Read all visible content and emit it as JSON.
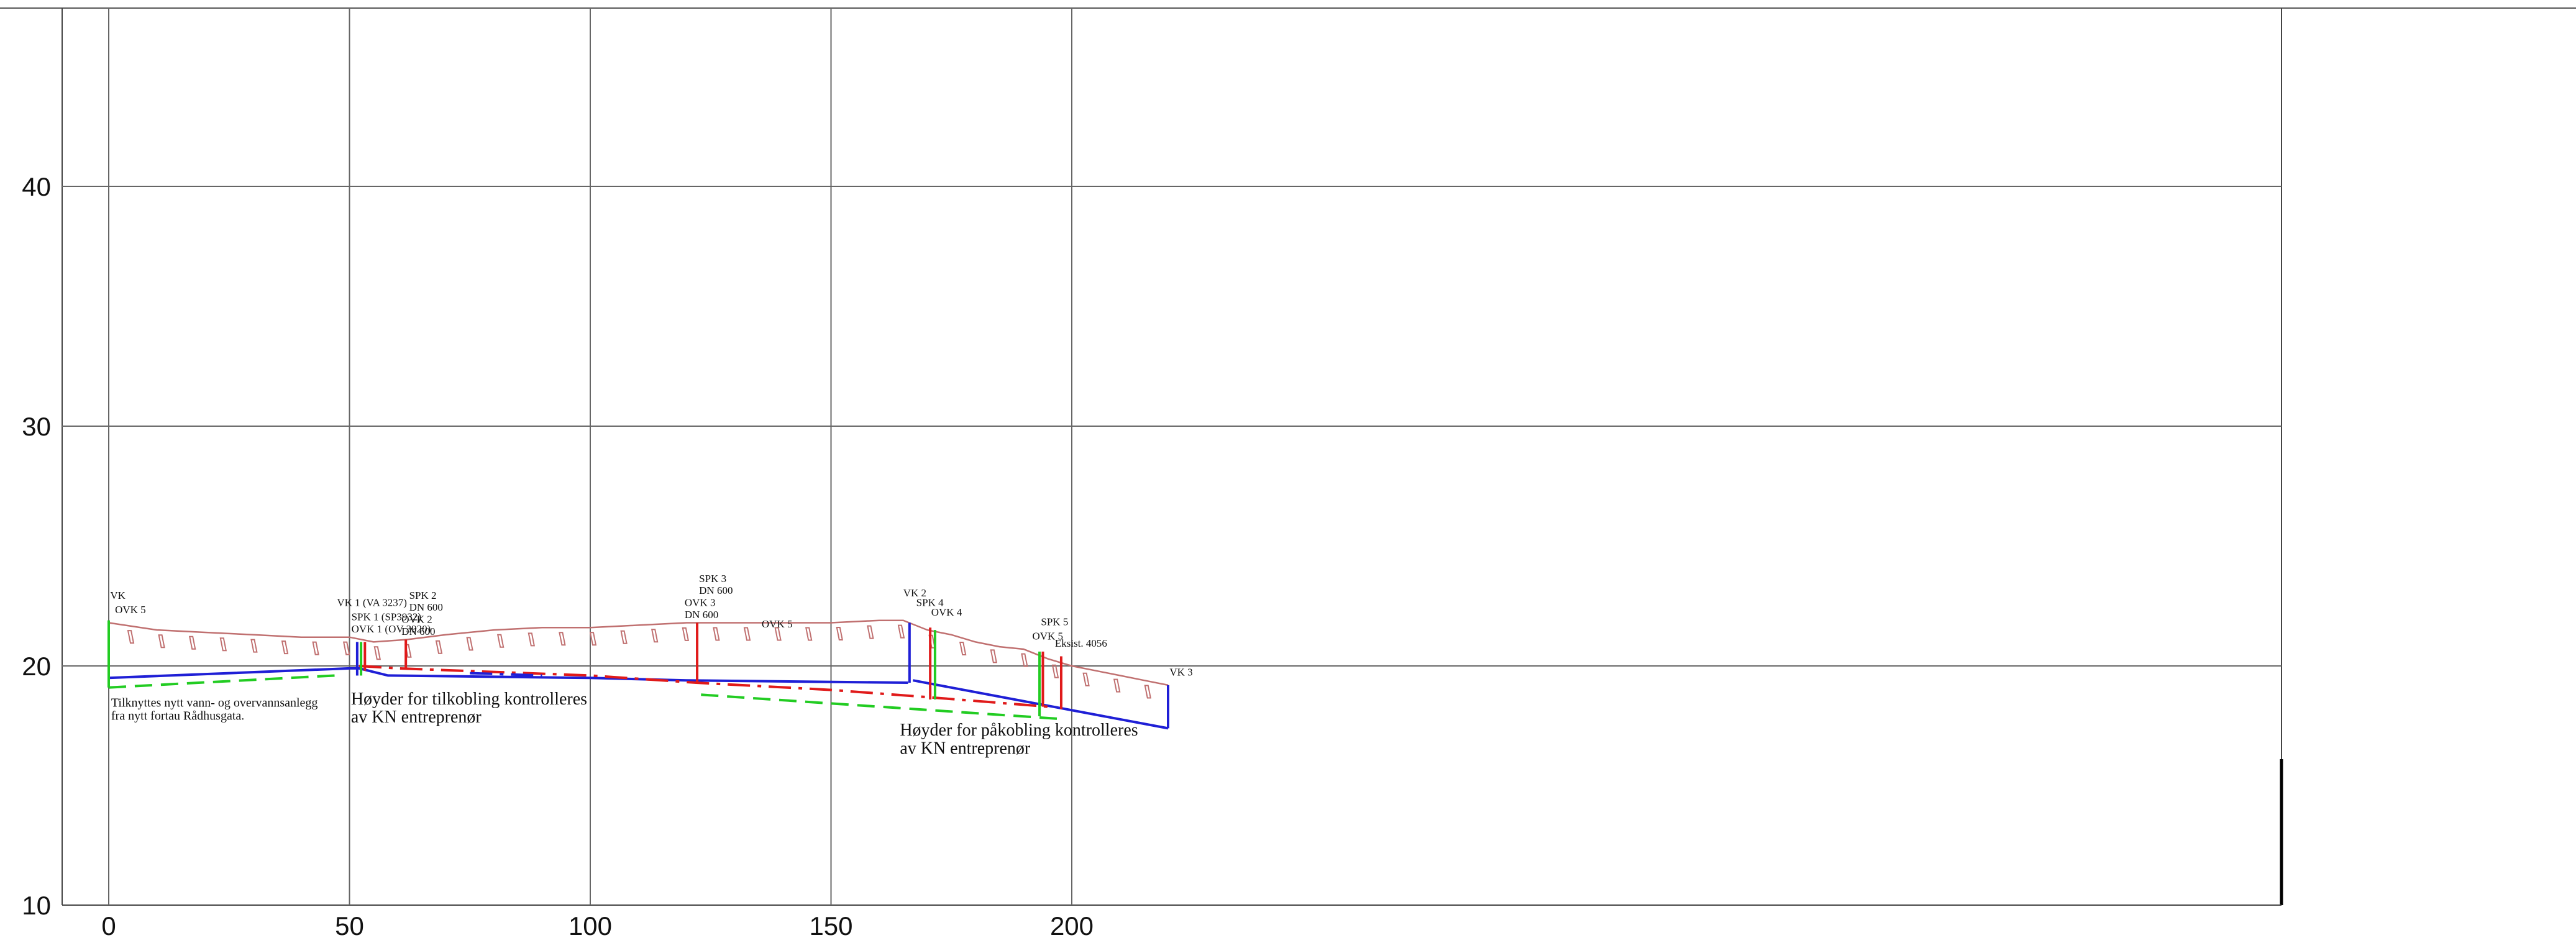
{
  "chart_data": {
    "type": "profile",
    "x_axis": {
      "ticks": [
        "0",
        "50",
        "100",
        "150",
        "200"
      ],
      "range": [
        0,
        225
      ]
    },
    "y_axis": {
      "ticks": [
        "10",
        "20",
        "30",
        "40"
      ],
      "range": [
        10,
        47
      ]
    },
    "grid": true,
    "terrain": {
      "name": "terrain",
      "color": "#c07070",
      "points": [
        [
          0,
          21.8
        ],
        [
          10,
          21.5
        ],
        [
          20,
          21.4
        ],
        [
          30,
          21.3
        ],
        [
          40,
          21.2
        ],
        [
          50,
          21.2
        ],
        [
          55,
          21.0
        ],
        [
          62,
          21.1
        ],
        [
          70,
          21.3
        ],
        [
          80,
          21.5
        ],
        [
          90,
          21.6
        ],
        [
          100,
          21.6
        ],
        [
          110,
          21.7
        ],
        [
          120,
          21.8
        ],
        [
          130,
          21.8
        ],
        [
          140,
          21.8
        ],
        [
          150,
          21.8
        ],
        [
          160,
          21.9
        ],
        [
          165,
          21.9
        ],
        [
          170,
          21.5
        ],
        [
          175,
          21.3
        ],
        [
          180,
          21.0
        ],
        [
          185,
          20.8
        ],
        [
          190,
          20.7
        ],
        [
          195,
          20.3
        ],
        [
          200,
          20.0
        ],
        [
          205,
          19.8
        ],
        [
          210,
          19.6
        ],
        [
          215,
          19.4
        ],
        [
          220,
          19.2
        ]
      ]
    },
    "series": [
      {
        "name": "blue",
        "color": "#1f1fd6",
        "style": "solid",
        "points": [
          [
            0,
            19.5
          ],
          [
            50,
            19.9
          ],
          [
            52,
            19.9
          ],
          [
            58,
            19.6
          ],
          [
            100,
            19.5
          ],
          [
            120,
            19.4
          ],
          [
            166,
            19.3
          ]
        ]
      },
      {
        "name": "blue2",
        "color": "#1f1fd6",
        "style": "solid",
        "points": [
          [
            167,
            19.4
          ],
          [
            220,
            17.4
          ]
        ]
      },
      {
        "name": "green1",
        "color": "#22cc22",
        "style": "dashed",
        "points": [
          [
            0,
            19.1
          ],
          [
            47,
            19.6
          ]
        ]
      },
      {
        "name": "green2",
        "color": "#22cc22",
        "style": "dashed",
        "points": [
          [
            123,
            18.8
          ],
          [
            197,
            17.8
          ]
        ]
      },
      {
        "name": "red",
        "color": "#e01a1a",
        "style": "dashdot",
        "points": [
          [
            52,
            20.0
          ],
          [
            60,
            19.9
          ],
          [
            100,
            19.6
          ],
          [
            122,
            19.3
          ],
          [
            150,
            19.0
          ],
          [
            170,
            18.7
          ],
          [
            195,
            18.3
          ]
        ]
      },
      {
        "name": "blue-dashdot",
        "color": "#1f1fd6",
        "style": "dashdot",
        "points": [
          [
            75,
            19.7
          ],
          [
            90,
            19.6
          ]
        ]
      }
    ],
    "verticals": [
      {
        "x": 0,
        "y1": 19.1,
        "y2": 21.9,
        "color": "#22cc22"
      },
      {
        "x": 51.6,
        "y1": 19.6,
        "y2": 21.0,
        "color": "#1f1fd6"
      },
      {
        "x": 52.4,
        "y1": 19.6,
        "y2": 21.0,
        "color": "#22cc22"
      },
      {
        "x": 53.2,
        "y1": 19.8,
        "y2": 21.0,
        "color": "#e01a1a"
      },
      {
        "x": 61.7,
        "y1": 19.9,
        "y2": 21.1,
        "color": "#e01a1a"
      },
      {
        "x": 122.2,
        "y1": 19.3,
        "y2": 21.8,
        "color": "#e01a1a"
      },
      {
        "x": 166.3,
        "y1": 19.3,
        "y2": 21.8,
        "color": "#1f1fd6"
      },
      {
        "x": 170.6,
        "y1": 18.6,
        "y2": 21.6,
        "color": "#e01a1a"
      },
      {
        "x": 171.6,
        "y1": 18.6,
        "y2": 21.5,
        "color": "#22cc22"
      },
      {
        "x": 193.3,
        "y1": 17.9,
        "y2": 20.6,
        "color": "#22cc22"
      },
      {
        "x": 194.0,
        "y1": 18.3,
        "y2": 20.6,
        "color": "#e01a1a"
      },
      {
        "x": 197.8,
        "y1": 18.2,
        "y2": 20.4,
        "color": "#e01a1a"
      },
      {
        "x": 220.0,
        "y1": 17.4,
        "y2": 19.2,
        "color": "#1f1fd6"
      }
    ],
    "labels": [
      {
        "text": "VK",
        "x": 0.3,
        "y": 22.8
      },
      {
        "text": "OVK 5",
        "x": 1.3,
        "y": 22.2
      },
      {
        "text": "VK 1 (VA 3237)",
        "x": 47.4,
        "y": 22.5
      },
      {
        "text": "SPK 1 (SP3932)",
        "x": 50.4,
        "y": 21.9
      },
      {
        "text": "OVK 1 (OV 3920)",
        "x": 50.4,
        "y": 21.4
      },
      {
        "text": "SPK 2",
        "x": 62.4,
        "y": 22.8
      },
      {
        "text": "DN 600",
        "x": 62.4,
        "y": 22.3
      },
      {
        "text": "OVK 2",
        "x": 60.8,
        "y": 21.8
      },
      {
        "text": "DN 600",
        "x": 60.8,
        "y": 21.3
      },
      {
        "text": "SPK 3",
        "x": 122.6,
        "y": 23.5
      },
      {
        "text": "DN 600",
        "x": 122.6,
        "y": 23.0
      },
      {
        "text": "OVK 3",
        "x": 119.6,
        "y": 22.5
      },
      {
        "text": "DN 600",
        "x": 119.6,
        "y": 22.0
      },
      {
        "text": "OVK 5",
        "x": 135.6,
        "y": 21.6
      },
      {
        "text": "VK 2",
        "x": 165.0,
        "y": 22.9
      },
      {
        "text": "SPK 4",
        "x": 167.7,
        "y": 22.5
      },
      {
        "text": "OVK 4",
        "x": 170.8,
        "y": 22.1
      },
      {
        "text": "SPK 5",
        "x": 193.6,
        "y": 21.7
      },
      {
        "text": "OVK 5",
        "x": 191.8,
        "y": 21.1
      },
      {
        "text": "Eksist. 4056",
        "x": 196.5,
        "y": 20.8
      },
      {
        "text": "VK 3",
        "x": 220.3,
        "y": 19.6
      }
    ],
    "notes": [
      {
        "lines": [
          "Tilknyttes nytt vann- og overvannsanlegg",
          "fra nytt fortau Rådhusgata."
        ],
        "x": 0.5,
        "y": 18.3,
        "size": 20
      },
      {
        "lines": [
          "Høyder for tilkobling kontrolleres",
          "av KN entreprenør"
        ],
        "x": 50.3,
        "y": 18.4,
        "size": 28
      },
      {
        "lines": [
          "Høyder for påkobling kontrolleres",
          "av KN entreprenør"
        ],
        "x": 164.3,
        "y": 17.1,
        "size": 28
      }
    ]
  }
}
